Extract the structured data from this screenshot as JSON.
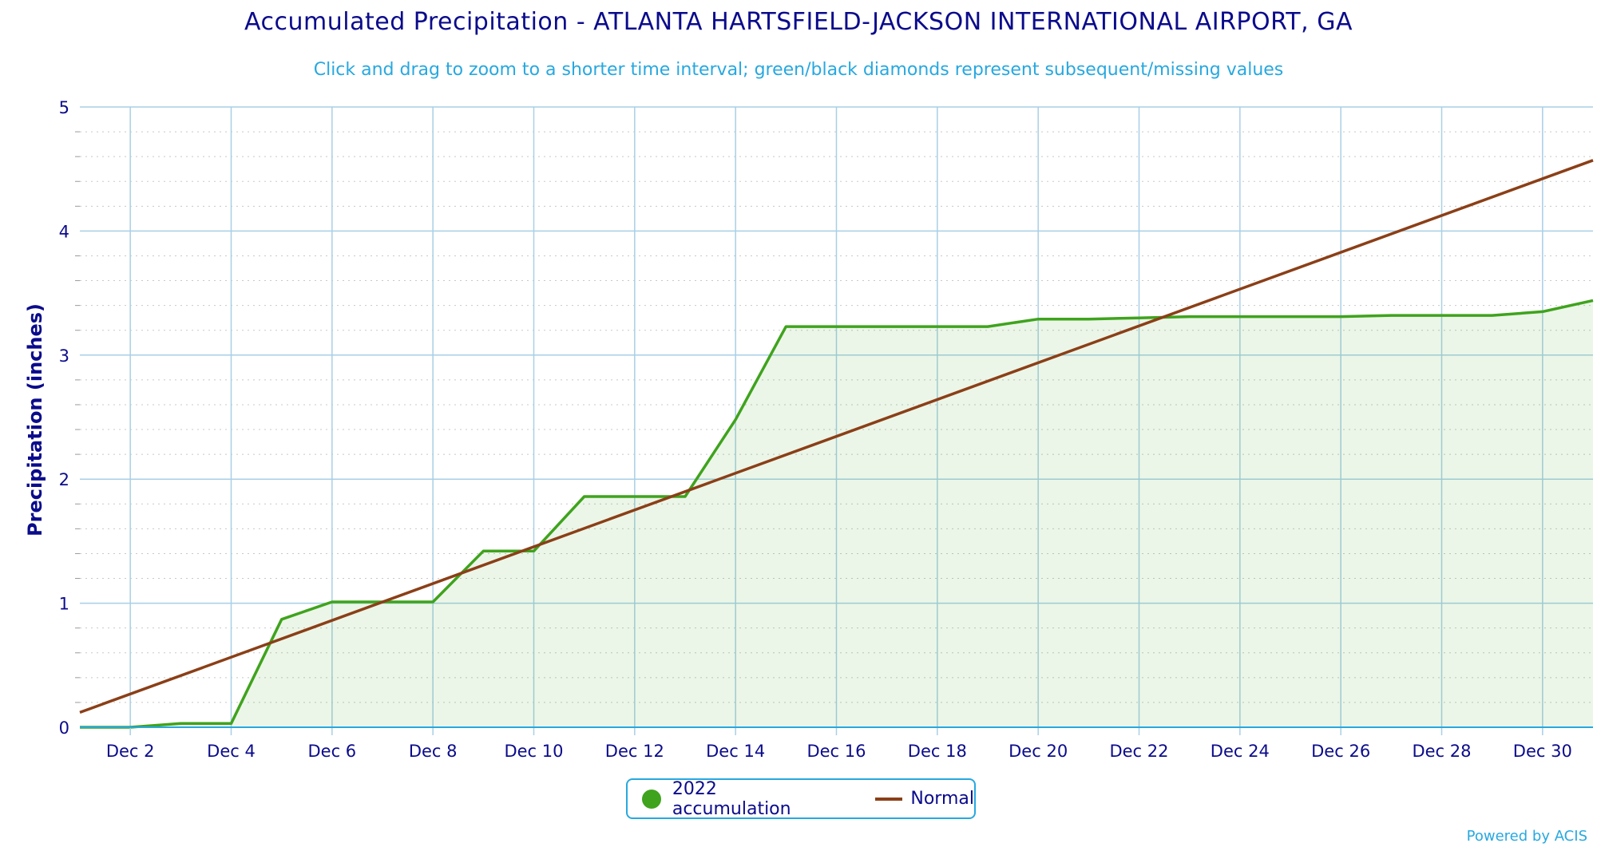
{
  "chart_data": {
    "type": "line",
    "title": "Accumulated Precipitation - ATLANTA HARTSFIELD-JACKSON INTERNATIONAL AIRPORT, GA",
    "subtitle": "Click and drag to zoom to a shorter time interval; green/black diamonds represent subsequent/missing values",
    "ylabel": "Precipitation (inches)",
    "xlabel": "",
    "ylim": [
      0,
      5
    ],
    "y_ticks": [
      0,
      1,
      2,
      3,
      4,
      5
    ],
    "x_ticks": [
      "Dec 2",
      "Dec 4",
      "Dec 6",
      "Dec 8",
      "Dec 10",
      "Dec 12",
      "Dec 14",
      "Dec 16",
      "Dec 18",
      "Dec 20",
      "Dec 22",
      "Dec 24",
      "Dec 26",
      "Dec 28",
      "Dec 30"
    ],
    "x_tick_days": [
      2,
      4,
      6,
      8,
      10,
      12,
      14,
      16,
      18,
      20,
      22,
      24,
      26,
      28,
      30
    ],
    "xlim": [
      "Dec 1",
      "Dec 31"
    ],
    "grid": true,
    "legend_position": "bottom-center",
    "series": [
      {
        "name": "2022 accumulation",
        "color": "#3fa31d",
        "fill": true,
        "x": [
          "Dec 1",
          "Dec 2",
          "Dec 3",
          "Dec 4",
          "Dec 5",
          "Dec 6",
          "Dec 7",
          "Dec 8",
          "Dec 9",
          "Dec 10",
          "Dec 11",
          "Dec 12",
          "Dec 13",
          "Dec 14",
          "Dec 15",
          "Dec 16",
          "Dec 17",
          "Dec 18",
          "Dec 19",
          "Dec 20",
          "Dec 21",
          "Dec 22",
          "Dec 23",
          "Dec 24",
          "Dec 25",
          "Dec 26",
          "Dec 27",
          "Dec 28",
          "Dec 29",
          "Dec 30",
          "Dec 31"
        ],
        "values": [
          0.0,
          0.0,
          0.03,
          0.03,
          0.87,
          1.01,
          1.01,
          1.01,
          1.42,
          1.42,
          1.86,
          1.86,
          1.86,
          2.48,
          3.23,
          3.23,
          3.23,
          3.23,
          3.23,
          3.29,
          3.29,
          3.3,
          3.31,
          3.31,
          3.31,
          3.31,
          3.32,
          3.32,
          3.32,
          3.35,
          3.44
        ]
      },
      {
        "name": "Normal",
        "color": "#8b3f17",
        "fill": false,
        "x": [
          "Dec 1",
          "Dec 31"
        ],
        "values": [
          0.12,
          4.57
        ]
      }
    ]
  },
  "legend": {
    "series1_label": "2022 accumulation",
    "series2_label": "Normal"
  },
  "credit": "Powered by ACIS"
}
